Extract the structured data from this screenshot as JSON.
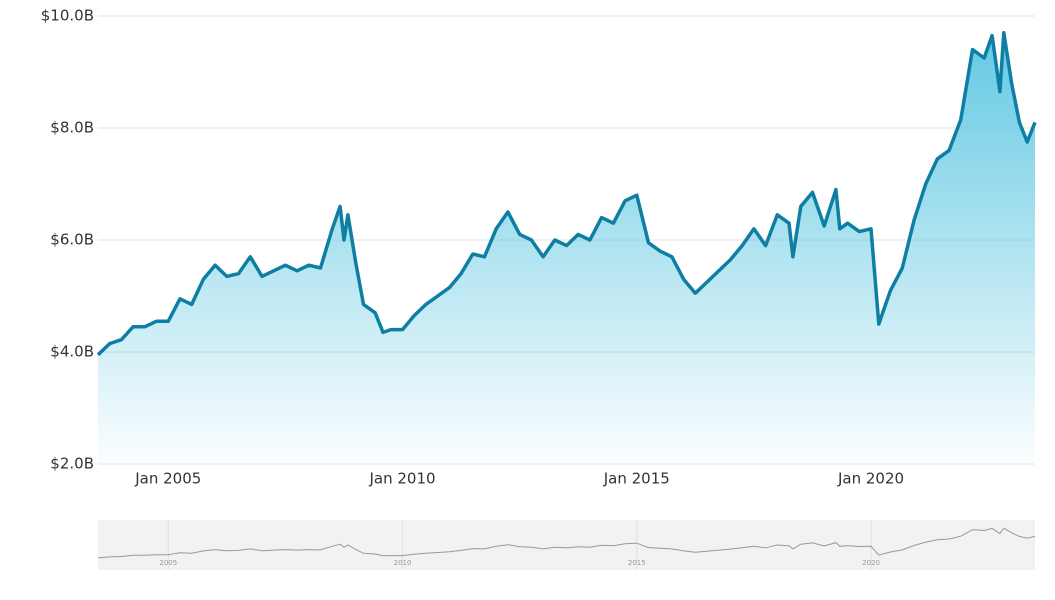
{
  "chart_data": {
    "type": "area",
    "x": [
      "2003-07",
      "2003-10",
      "2004-01",
      "2004-04",
      "2004-07",
      "2004-10",
      "2005-01",
      "2005-04",
      "2005-07",
      "2005-10",
      "2006-01",
      "2006-04",
      "2006-07",
      "2006-10",
      "2007-01",
      "2007-04",
      "2007-07",
      "2007-10",
      "2008-01",
      "2008-04",
      "2008-07",
      "2008-09",
      "2008-10",
      "2008-11",
      "2009-01",
      "2009-03",
      "2009-06",
      "2009-08",
      "2009-10",
      "2010-01",
      "2010-04",
      "2010-07",
      "2010-10",
      "2011-01",
      "2011-04",
      "2011-07",
      "2011-10",
      "2012-01",
      "2012-04",
      "2012-07",
      "2012-10",
      "2013-01",
      "2013-04",
      "2013-07",
      "2013-10",
      "2014-01",
      "2014-04",
      "2014-07",
      "2014-10",
      "2015-01",
      "2015-04",
      "2015-07",
      "2015-10",
      "2016-01",
      "2016-04",
      "2016-07",
      "2016-10",
      "2017-01",
      "2017-04",
      "2017-07",
      "2017-10",
      "2018-01",
      "2018-04",
      "2018-05",
      "2018-07",
      "2018-10",
      "2019-01",
      "2019-04",
      "2019-05",
      "2019-07",
      "2019-10",
      "2020-01",
      "2020-03",
      "2020-06",
      "2020-09",
      "2020-12",
      "2021-03",
      "2021-06",
      "2021-09",
      "2021-12",
      "2022-03",
      "2022-06",
      "2022-08",
      "2022-10",
      "2022-11",
      "2023-01",
      "2023-03",
      "2023-05",
      "2023-07"
    ],
    "values": [
      3.95,
      4.15,
      4.22,
      4.45,
      4.45,
      4.55,
      4.55,
      4.95,
      4.85,
      5.3,
      5.55,
      5.35,
      5.4,
      5.7,
      5.35,
      5.45,
      5.55,
      5.45,
      5.55,
      5.5,
      6.2,
      6.6,
      6.0,
      6.45,
      5.6,
      4.85,
      4.7,
      4.35,
      4.4,
      4.4,
      4.65,
      4.85,
      5.0,
      5.15,
      5.4,
      5.75,
      5.7,
      6.2,
      6.5,
      6.1,
      6.0,
      5.7,
      6.0,
      5.9,
      6.1,
      6.0,
      6.4,
      6.3,
      6.7,
      6.8,
      5.95,
      5.8,
      5.7,
      5.3,
      5.05,
      5.25,
      5.45,
      5.65,
      5.9,
      6.2,
      5.9,
      6.45,
      6.3,
      5.7,
      6.6,
      6.85,
      6.25,
      6.9,
      6.2,
      6.3,
      6.15,
      6.2,
      4.5,
      5.1,
      5.5,
      6.35,
      7.0,
      7.45,
      7.6,
      8.15,
      9.4,
      9.25,
      9.65,
      8.65,
      9.7,
      8.8,
      8.1,
      7.75,
      8.1
    ],
    "color": "#0e7fa3",
    "xlim": [
      "2003-07",
      "2023-07"
    ],
    "xticks": [
      {
        "value": "2005-01",
        "label": "Jan 2005"
      },
      {
        "value": "2010-01",
        "label": "Jan 2010"
      },
      {
        "value": "2015-01",
        "label": "Jan 2015"
      },
      {
        "value": "2020-01",
        "label": "Jan 2020"
      }
    ],
    "ylim": [
      2,
      10
    ],
    "yticks": [
      {
        "value": 2,
        "label": "$2.0B"
      },
      {
        "value": 4,
        "label": "$4.0B"
      },
      {
        "value": 6,
        "label": "$6.0B"
      },
      {
        "value": 8,
        "label": "$8.0B"
      },
      {
        "value": 10,
        "label": "$10.0B"
      }
    ],
    "grid": true,
    "navigator_xticks": [
      {
        "value": "2005-01",
        "label": "2005"
      },
      {
        "value": "2010-01",
        "label": "2010"
      },
      {
        "value": "2015-01",
        "label": "2015"
      },
      {
        "value": "2020-01",
        "label": "2020"
      }
    ]
  }
}
